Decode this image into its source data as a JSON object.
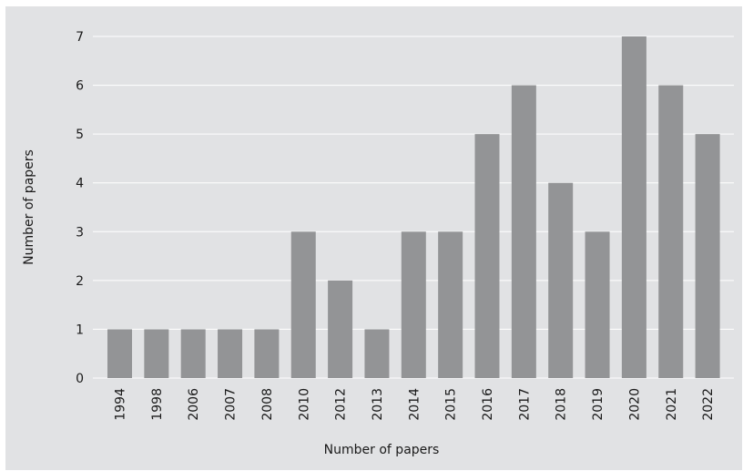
{
  "chart_data": {
    "type": "bar",
    "categories": [
      "1994",
      "1998",
      "2006",
      "2007",
      "2008",
      "2010",
      "2012",
      "2013",
      "2014",
      "2015",
      "2016",
      "2017",
      "2018",
      "2019",
      "2020",
      "2021",
      "2022"
    ],
    "values": [
      1,
      1,
      1,
      1,
      1,
      3,
      2,
      1,
      3,
      3,
      5,
      6,
      4,
      3,
      7,
      6,
      5
    ],
    "title": "",
    "xlabel": "Number of papers",
    "ylabel": "Number of papers",
    "ylim": [
      0,
      7
    ],
    "yticks": [
      "0",
      "1",
      "2",
      "3",
      "4",
      "5",
      "6",
      "7"
    ],
    "grid": true,
    "bar_color": "#939496",
    "background_color": "#e1e2e4",
    "grid_color": "#ffffff"
  }
}
